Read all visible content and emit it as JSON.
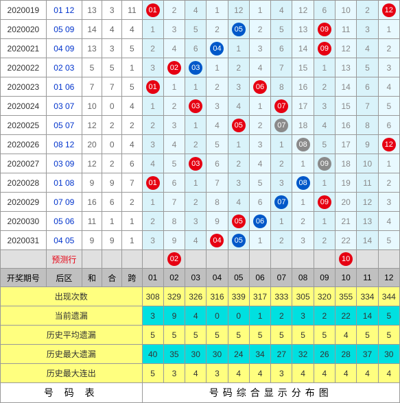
{
  "colors": {
    "grid_odd": "#d9f3fa",
    "grid_even": "#e8f9ff",
    "red": "#e60012",
    "blue": "#0058c9",
    "gray": "#8a8a8a",
    "header_bg": "#c0c0c0",
    "yellow": "#ffff7f",
    "cyan": "#00e0e0",
    "predict_bg": "#e0e0e0",
    "rear_text": "#0033cc",
    "border": "#999999"
  },
  "rows": [
    {
      "period": "2020019",
      "rear": "01 12",
      "sum": 13,
      "he": 3,
      "kua": 11,
      "balls": [
        {
          "n": 1,
          "c": "red"
        },
        {
          "n": 12,
          "c": "red"
        }
      ],
      "miss": [
        null,
        2,
        4,
        1,
        12,
        1,
        4,
        12,
        6,
        10,
        2,
        null
      ]
    },
    {
      "period": "2020020",
      "rear": "05 09",
      "sum": 14,
      "he": 4,
      "kua": 4,
      "balls": [
        {
          "n": 5,
          "c": "blue"
        },
        {
          "n": 9,
          "c": "red"
        }
      ],
      "miss": [
        1,
        3,
        5,
        2,
        null,
        2,
        5,
        13,
        null,
        11,
        3,
        1
      ]
    },
    {
      "period": "2020021",
      "rear": "04 09",
      "sum": 13,
      "he": 3,
      "kua": 5,
      "balls": [
        {
          "n": 4,
          "c": "blue"
        },
        {
          "n": 9,
          "c": "red"
        }
      ],
      "miss": [
        2,
        4,
        6,
        null,
        1,
        3,
        6,
        14,
        null,
        12,
        4,
        2
      ]
    },
    {
      "period": "2020022",
      "rear": "02 03",
      "sum": 5,
      "he": 5,
      "kua": 1,
      "balls": [
        {
          "n": 2,
          "c": "red"
        },
        {
          "n": 3,
          "c": "blue"
        }
      ],
      "miss": [
        3,
        null,
        null,
        1,
        2,
        4,
        7,
        15,
        1,
        13,
        5,
        3
      ]
    },
    {
      "period": "2020023",
      "rear": "01 06",
      "sum": 7,
      "he": 7,
      "kua": 5,
      "balls": [
        {
          "n": 1,
          "c": "red"
        },
        {
          "n": 6,
          "c": "red"
        }
      ],
      "miss": [
        null,
        1,
        1,
        2,
        3,
        null,
        8,
        16,
        2,
        14,
        6,
        4
      ]
    },
    {
      "period": "2020024",
      "rear": "03 07",
      "sum": 10,
      "he": 0,
      "kua": 4,
      "balls": [
        {
          "n": 3,
          "c": "red"
        },
        {
          "n": 7,
          "c": "red"
        }
      ],
      "miss": [
        1,
        2,
        null,
        3,
        4,
        1,
        null,
        17,
        3,
        15,
        7,
        5
      ]
    },
    {
      "period": "2020025",
      "rear": "05 07",
      "sum": 12,
      "he": 2,
      "kua": 2,
      "balls": [
        {
          "n": 5,
          "c": "red"
        },
        {
          "n": 7,
          "c": "gray"
        }
      ],
      "miss": [
        2,
        3,
        1,
        4,
        null,
        2,
        null,
        18,
        4,
        16,
        8,
        6
      ]
    },
    {
      "period": "2020026",
      "rear": "08 12",
      "sum": 20,
      "he": 0,
      "kua": 4,
      "balls": [
        {
          "n": 8,
          "c": "gray"
        },
        {
          "n": 12,
          "c": "red"
        }
      ],
      "miss": [
        3,
        4,
        2,
        5,
        1,
        3,
        1,
        null,
        5,
        17,
        9,
        null
      ]
    },
    {
      "period": "2020027",
      "rear": "03 09",
      "sum": 12,
      "he": 2,
      "kua": 6,
      "balls": [
        {
          "n": 3,
          "c": "red"
        },
        {
          "n": 9,
          "c": "gray"
        }
      ],
      "miss": [
        4,
        5,
        null,
        6,
        2,
        4,
        2,
        1,
        null,
        18,
        10,
        1
      ]
    },
    {
      "period": "2020028",
      "rear": "01 08",
      "sum": 9,
      "he": 9,
      "kua": 7,
      "balls": [
        {
          "n": 1,
          "c": "red"
        },
        {
          "n": 8,
          "c": "blue"
        }
      ],
      "miss": [
        null,
        6,
        1,
        7,
        3,
        5,
        3,
        null,
        1,
        19,
        11,
        2
      ]
    },
    {
      "period": "2020029",
      "rear": "07 09",
      "sum": 16,
      "he": 6,
      "kua": 2,
      "balls": [
        {
          "n": 7,
          "c": "blue"
        },
        {
          "n": 9,
          "c": "red"
        }
      ],
      "miss": [
        1,
        7,
        2,
        8,
        4,
        6,
        null,
        1,
        null,
        20,
        12,
        3
      ]
    },
    {
      "period": "2020030",
      "rear": "05 06",
      "sum": 11,
      "he": 1,
      "kua": 1,
      "balls": [
        {
          "n": 5,
          "c": "red"
        },
        {
          "n": 6,
          "c": "blue"
        }
      ],
      "miss": [
        2,
        8,
        3,
        9,
        null,
        null,
        1,
        2,
        1,
        21,
        13,
        4
      ]
    },
    {
      "period": "2020031",
      "rear": "04 05",
      "sum": 9,
      "he": 9,
      "kua": 1,
      "balls": [
        {
          "n": 4,
          "c": "red"
        },
        {
          "n": 5,
          "c": "blue"
        }
      ],
      "miss": [
        3,
        9,
        4,
        null,
        null,
        1,
        2,
        3,
        2,
        22,
        14,
        5
      ]
    }
  ],
  "predict": {
    "label": "预测行",
    "balls": [
      {
        "n": 2,
        "c": "red"
      },
      {
        "n": 10,
        "c": "red"
      }
    ]
  },
  "header": {
    "period": "开奖期号",
    "rear": "后区",
    "sum": "和",
    "he": "合",
    "kua": "跨",
    "nums": [
      "01",
      "02",
      "03",
      "04",
      "05",
      "06",
      "07",
      "08",
      "09",
      "10",
      "11",
      "12"
    ]
  },
  "stats": [
    {
      "label": "出现次数",
      "style": "yellow",
      "v": [
        308,
        329,
        326,
        316,
        339,
        317,
        333,
        305,
        320,
        355,
        334,
        344
      ]
    },
    {
      "label": "当前遗漏",
      "style": "cyan",
      "v": [
        3,
        9,
        4,
        0,
        0,
        1,
        2,
        3,
        2,
        22,
        14,
        5
      ]
    },
    {
      "label": "历史平均遗漏",
      "style": "yellow",
      "v": [
        5,
        5,
        5,
        5,
        5,
        5,
        5,
        5,
        5,
        4,
        5,
        5
      ]
    },
    {
      "label": "历史最大遗漏",
      "style": "cyan",
      "v": [
        40,
        35,
        30,
        30,
        24,
        34,
        27,
        32,
        26,
        28,
        37,
        30
      ]
    },
    {
      "label": "历史最大连出",
      "style": "yellow",
      "v": [
        5,
        3,
        4,
        3,
        4,
        4,
        3,
        4,
        4,
        4,
        4,
        4
      ]
    }
  ],
  "footer": {
    "left": "号 码 表",
    "right": "号码综合显示分布图"
  }
}
